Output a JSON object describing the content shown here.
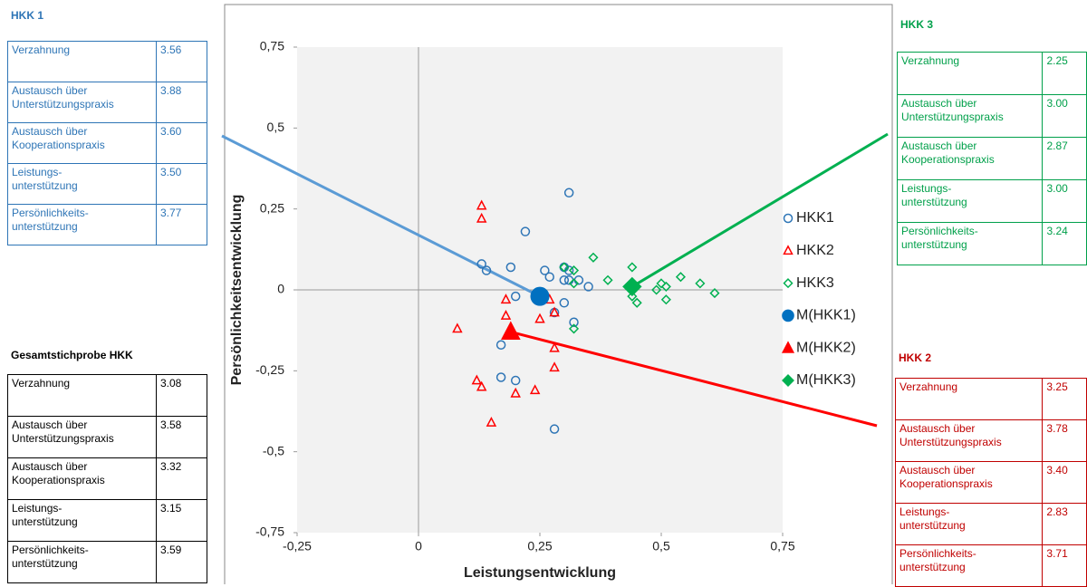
{
  "chart_data": {
    "type": "scatter",
    "x_label": "Leistungsentwicklung",
    "y_label": "Persönlichkeitsentwicklung",
    "xlim": [
      -0.25,
      0.75
    ],
    "ylim": [
      -0.75,
      0.75
    ],
    "xticks": [
      {
        "value": -0.25,
        "label": "-0,25"
      },
      0,
      {
        "value": 0.25,
        "label": "0,25"
      },
      {
        "value": 0.5,
        "label": "0,5"
      },
      {
        "value": 0.75,
        "label": "0,75"
      }
    ],
    "yticks": [
      {
        "value": -0.75,
        "label": "-0,75"
      },
      {
        "value": -0.5,
        "label": "-0,5"
      },
      {
        "value": -0.25,
        "label": "-0,25"
      },
      0,
      {
        "value": 0.25,
        "label": "0,25"
      },
      {
        "value": 0.5,
        "label": "0,5"
      },
      {
        "value": 0.75,
        "label": "0,75"
      }
    ],
    "series": [
      {
        "name": "HKK1",
        "color": "#2e75b6",
        "marker": "circle-open",
        "x": [
          0.31,
          0.22,
          0.13,
          0.14,
          0.19,
          0.26,
          0.27,
          0.3,
          0.31,
          0.3,
          0.31,
          0.33,
          0.35,
          0.2,
          0.3,
          0.28,
          0.32,
          0.17,
          0.17,
          0.2,
          0.28
        ],
        "values": [
          0.3,
          0.18,
          0.08,
          0.06,
          0.07,
          0.06,
          0.04,
          0.07,
          0.06,
          0.03,
          0.03,
          0.03,
          0.01,
          -0.02,
          -0.04,
          -0.07,
          -0.1,
          -0.17,
          -0.27,
          -0.28,
          -0.43
        ]
      },
      {
        "name": "HKK2",
        "color": "#ff0000",
        "marker": "triangle-open",
        "x": [
          0.13,
          0.13,
          0.18,
          0.18,
          0.08,
          0.25,
          0.27,
          0.28,
          0.28,
          0.28,
          0.12,
          0.13,
          0.2,
          0.24,
          0.15
        ],
        "values": [
          0.26,
          0.22,
          -0.03,
          -0.08,
          -0.12,
          -0.09,
          -0.03,
          -0.07,
          -0.18,
          -0.24,
          -0.28,
          -0.3,
          -0.32,
          -0.31,
          -0.41
        ]
      },
      {
        "name": "HKK3",
        "color": "#00b050",
        "marker": "diamond-open",
        "x": [
          0.3,
          0.32,
          0.36,
          0.39,
          0.32,
          0.32,
          0.44,
          0.44,
          0.45,
          0.49,
          0.5,
          0.51,
          0.54,
          0.51,
          0.58,
          0.61
        ],
        "values": [
          0.07,
          0.06,
          0.1,
          0.03,
          0.02,
          -0.12,
          0.07,
          -0.02,
          -0.04,
          0.0,
          0.02,
          0.01,
          0.04,
          -0.03,
          0.02,
          -0.01
        ]
      },
      {
        "name": "M(HKK1)",
        "color": "#0070c0",
        "marker": "circle",
        "x": [
          0.25
        ],
        "values": [
          -0.02
        ]
      },
      {
        "name": "M(HKK2)",
        "color": "#ff0000",
        "marker": "triangle",
        "x": [
          0.19
        ],
        "values": [
          -0.13
        ]
      },
      {
        "name": "M(HKK3)",
        "color": "#00b050",
        "marker": "diamond",
        "x": [
          0.44
        ],
        "values": [
          0.01
        ]
      }
    ]
  },
  "tables": [
    {
      "title": "HKK 1",
      "color": "#2e75b6",
      "rows": [
        [
          "Verzahnung",
          "3.56"
        ],
        [
          "Austausch über\nUnterstützungspraxis",
          "3.88"
        ],
        [
          "Austausch über\nKooperationspraxis",
          "3.60"
        ],
        [
          "Leistungs-\nunterstützung",
          "3.50"
        ],
        [
          "Persönlichkeits-\nunterstützung",
          "3.77"
        ]
      ]
    },
    {
      "title": "Gesamtstichprobe HKK",
      "color": "#000000",
      "rows": [
        [
          "Verzahnung",
          "3.08"
        ],
        [
          "Austausch über\nUnterstützungspraxis",
          "3.58"
        ],
        [
          "Austausch über\nKooperationspraxis",
          "3.32"
        ],
        [
          "Leistungs-\nunterstützung",
          "3.15"
        ],
        [
          "Persönlichkeits-\nunterstützung",
          "3.59"
        ]
      ]
    },
    {
      "title": "HKK 3",
      "color": "#00a04a",
      "rows": [
        [
          "Verzahnung",
          "2.25"
        ],
        [
          "Austausch über\nUnterstützungspraxis",
          "3.00"
        ],
        [
          "Austausch über\nKooperationspraxis",
          "2.87"
        ],
        [
          "Leistungs-\nunterstützung",
          "3.00"
        ],
        [
          "Persönlichkeits-\nunterstützung",
          "3.24"
        ]
      ]
    },
    {
      "title": "HKK 2",
      "color": "#c00000",
      "rows": [
        [
          "Verzahnung",
          "3.25"
        ],
        [
          "Austausch über\nUnterstützungspraxis",
          "3.78"
        ],
        [
          "Austausch über\nKooperationspraxis",
          "3.40"
        ],
        [
          "Leistungs-\nunterstützung",
          "2.83"
        ],
        [
          "Persönlichkeits-\nunterstützung",
          "3.71"
        ]
      ]
    }
  ]
}
